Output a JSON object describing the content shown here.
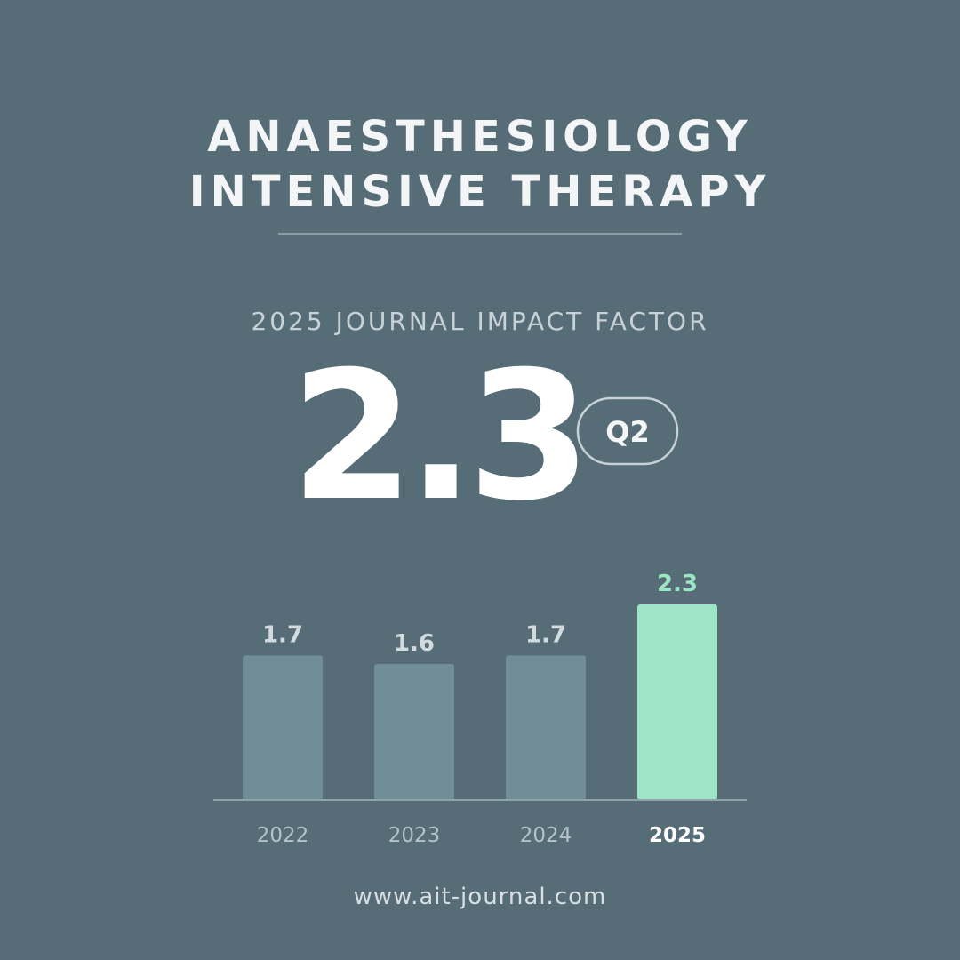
{
  "header": {
    "title_lines": [
      "ANAESTHESIOLOGY",
      "INTENSIVE THERAPY"
    ],
    "subtitle": "2025 JOURNAL IMPACT FACTOR",
    "headline_value": "2.3",
    "badge": "Q2"
  },
  "chart_data": {
    "type": "bar",
    "categories": [
      "2022",
      "2023",
      "2024",
      "2025"
    ],
    "values": [
      1.7,
      1.6,
      1.7,
      2.3
    ],
    "color": "#718d98",
    "highlight": "2025",
    "highlight_color": "#9de5c6"
  },
  "footer": {
    "url": "www.ait-journal.com"
  }
}
